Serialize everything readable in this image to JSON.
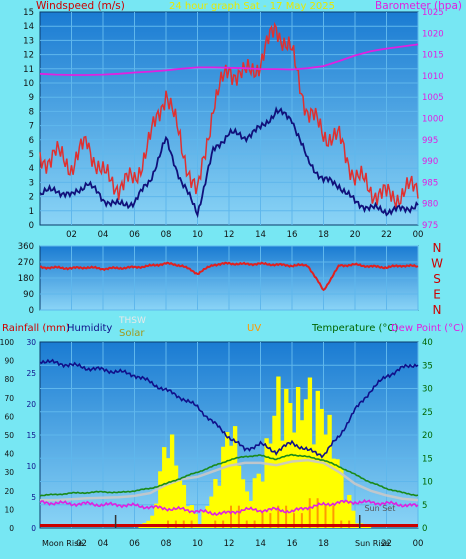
{
  "colors": {
    "background": "#77e7f3",
    "plot_top": "#1a7bd2",
    "plot_bottom": "#8ad4f6",
    "grid": "#5fb7ec",
    "wind_gust": "#e03030",
    "wind_avg": "#10107a",
    "barometer": "#e020e0",
    "direction": "#e02020",
    "humidity": "#10108a",
    "temperature": "#1a8a1a",
    "dew_point": "#e020e0",
    "solar": "#ffff00",
    "uv": "#ff9a00",
    "thsw": "#c8c8c8",
    "rain_axis_red": "#cc0000",
    "temp_axis_green": "#006400",
    "title_yellow": "#e8e800"
  },
  "chart_data": [
    {
      "type": "line",
      "title": "24 hour graph Sat - 17 May 2025",
      "ylabel_left": "Windspeed (m/s)",
      "ylabel_right": "Barometer (hpa)",
      "ylim_left": [
        0,
        15
      ],
      "ylim_right": [
        975,
        1025
      ],
      "left_ticks": [
        "0",
        "1",
        "2",
        "3",
        "4",
        "5",
        "6",
        "7",
        "8",
        "9",
        "10",
        "11",
        "12",
        "13",
        "14",
        "15"
      ],
      "right_ticks": [
        "975",
        "980",
        "985",
        "990",
        "995",
        "1000",
        "1005",
        "1010",
        "1015",
        "1020",
        "1025"
      ],
      "x_ticks": [
        "02",
        "04",
        "06",
        "08",
        "10",
        "12",
        "14",
        "16",
        "18",
        "20",
        "22",
        "00"
      ],
      "x": [
        0,
        1,
        2,
        3,
        4,
        5,
        6,
        7,
        8,
        9,
        10,
        11,
        12,
        13,
        14,
        15,
        16,
        17,
        18,
        19,
        20,
        21,
        22,
        23,
        24
      ],
      "series": [
        {
          "key": "gust",
          "values": [
            4.5,
            5.0,
            4.2,
            5.8,
            3.5,
            2.8,
            3.2,
            6.0,
            9.5,
            5.5,
            2.0,
            8.5,
            11.0,
            10.5,
            11.5,
            14.0,
            12.0,
            8.0,
            6.5,
            6.0,
            3.5,
            2.5,
            2.0,
            2.2,
            2.8
          ]
        },
        {
          "key": "avg",
          "values": [
            2.2,
            2.5,
            2.0,
            3.0,
            1.8,
            1.4,
            1.6,
            3.2,
            6.0,
            3.0,
            0.9,
            5.2,
            6.5,
            6.2,
            6.8,
            8.0,
            7.5,
            4.5,
            3.2,
            2.8,
            1.6,
            1.2,
            1.0,
            1.1,
            1.4
          ]
        },
        {
          "key": "barometer",
          "values": [
            1010.5,
            1010.3,
            1010.2,
            1010.2,
            1010.3,
            1010.5,
            1010.8,
            1011.0,
            1011.3,
            1011.7,
            1012.0,
            1012.0,
            1011.9,
            1011.8,
            1011.6,
            1011.6,
            1011.5,
            1011.8,
            1012.3,
            1013.5,
            1014.8,
            1015.8,
            1016.4,
            1016.9,
            1017.4
          ]
        }
      ]
    },
    {
      "type": "line",
      "ylim": [
        0,
        360
      ],
      "left_ticks": [
        "0",
        "90",
        "180",
        "270",
        "360"
      ],
      "right_labels": [
        "N",
        "W",
        "S",
        "E",
        "N"
      ],
      "x": [
        0,
        1,
        2,
        3,
        4,
        5,
        6,
        7,
        8,
        9,
        10,
        11,
        12,
        13,
        14,
        15,
        16,
        17,
        18,
        19,
        20,
        21,
        22,
        23,
        24
      ],
      "series": [
        {
          "key": "direction",
          "values": [
            240,
            238,
            235,
            240,
            232,
            236,
            240,
            248,
            262,
            250,
            205,
            255,
            262,
            258,
            260,
            255,
            250,
            252,
            110,
            250,
            255,
            245,
            240,
            250,
            245
          ]
        }
      ]
    },
    {
      "type": "line",
      "top_labels": [
        "Rainfall (mm)",
        "Humidity",
        "THSW",
        "Solar",
        "UV",
        "Temperature (°C)",
        "Dew Point (°C)"
      ],
      "annotations": [
        "Moon Rise",
        "Sun Set",
        "Sun Rise"
      ],
      "rain_ticks": [
        "0",
        "10",
        "20",
        "30",
        "40",
        "50",
        "60",
        "70",
        "80",
        "90",
        "100"
      ],
      "humidity_ticks": [
        "0",
        "5",
        "10",
        "15",
        "20",
        "25",
        "30"
      ],
      "temp_ticks": [
        "0",
        "5",
        "10",
        "15",
        "20",
        "25",
        "30",
        "35",
        "40"
      ],
      "x_ticks": [
        "02",
        "04",
        "06",
        "08",
        "10",
        "12",
        "14",
        "16",
        "18",
        "20",
        "22",
        "00"
      ],
      "ylim_left": [
        0,
        30
      ],
      "ylim_right": [
        0,
        40
      ],
      "x": [
        0,
        1,
        2,
        3,
        4,
        5,
        6,
        7,
        8,
        9,
        10,
        11,
        12,
        13,
        14,
        15,
        16,
        17,
        18,
        19,
        20,
        21,
        22,
        23,
        24
      ],
      "series": [
        {
          "key": "humidity",
          "values": [
            27.0,
            26.6,
            26.3,
            25.8,
            25.5,
            25.2,
            24.7,
            23.5,
            22.2,
            21.0,
            19.5,
            17.0,
            14.7,
            12.7,
            13.5,
            12.3,
            13.8,
            12.5,
            11.8,
            14.8,
            19.0,
            22.2,
            24.5,
            25.8,
            26.5
          ]
        },
        {
          "key": "temperature",
          "values": [
            7.0,
            7.2,
            7.5,
            7.6,
            7.8,
            7.6,
            8.0,
            8.5,
            9.5,
            10.8,
            12.0,
            13.3,
            14.6,
            15.4,
            15.6,
            14.8,
            15.8,
            15.3,
            14.6,
            13.2,
            11.5,
            9.8,
            8.5,
            7.6,
            7.0
          ]
        },
        {
          "key": "thsw",
          "values": [
            6.0,
            6.0,
            6.2,
            6.4,
            6.5,
            6.6,
            6.9,
            7.5,
            9.3,
            10.5,
            11.0,
            12.2,
            13.4,
            14.0,
            14.0,
            13.5,
            14.3,
            14.6,
            14.0,
            12.0,
            9.5,
            8.0,
            7.0,
            6.3,
            6.0
          ]
        },
        {
          "key": "dew_point",
          "values": [
            5.5,
            5.4,
            5.2,
            5.2,
            5.0,
            5.0,
            4.8,
            4.5,
            4.2,
            4.0,
            3.6,
            3.2,
            3.2,
            4.0,
            3.8,
            4.0,
            3.5,
            4.5,
            5.0,
            5.5,
            5.6,
            5.5,
            5.3,
            5.0,
            4.7
          ]
        },
        {
          "key": "solar",
          "values": [
            0,
            0,
            0,
            0,
            0,
            0,
            0,
            2,
            18,
            7,
            1,
            8,
            20,
            6,
            11,
            25,
            22,
            25,
            21,
            10,
            1,
            0,
            0,
            0,
            0
          ]
        },
        {
          "key": "uv",
          "values": [
            0,
            0,
            0,
            0,
            0,
            0,
            0,
            0,
            1,
            1,
            0,
            1,
            3,
            1,
            2,
            3,
            2,
            4,
            3,
            1,
            0,
            0,
            0,
            0,
            0
          ]
        }
      ]
    }
  ]
}
